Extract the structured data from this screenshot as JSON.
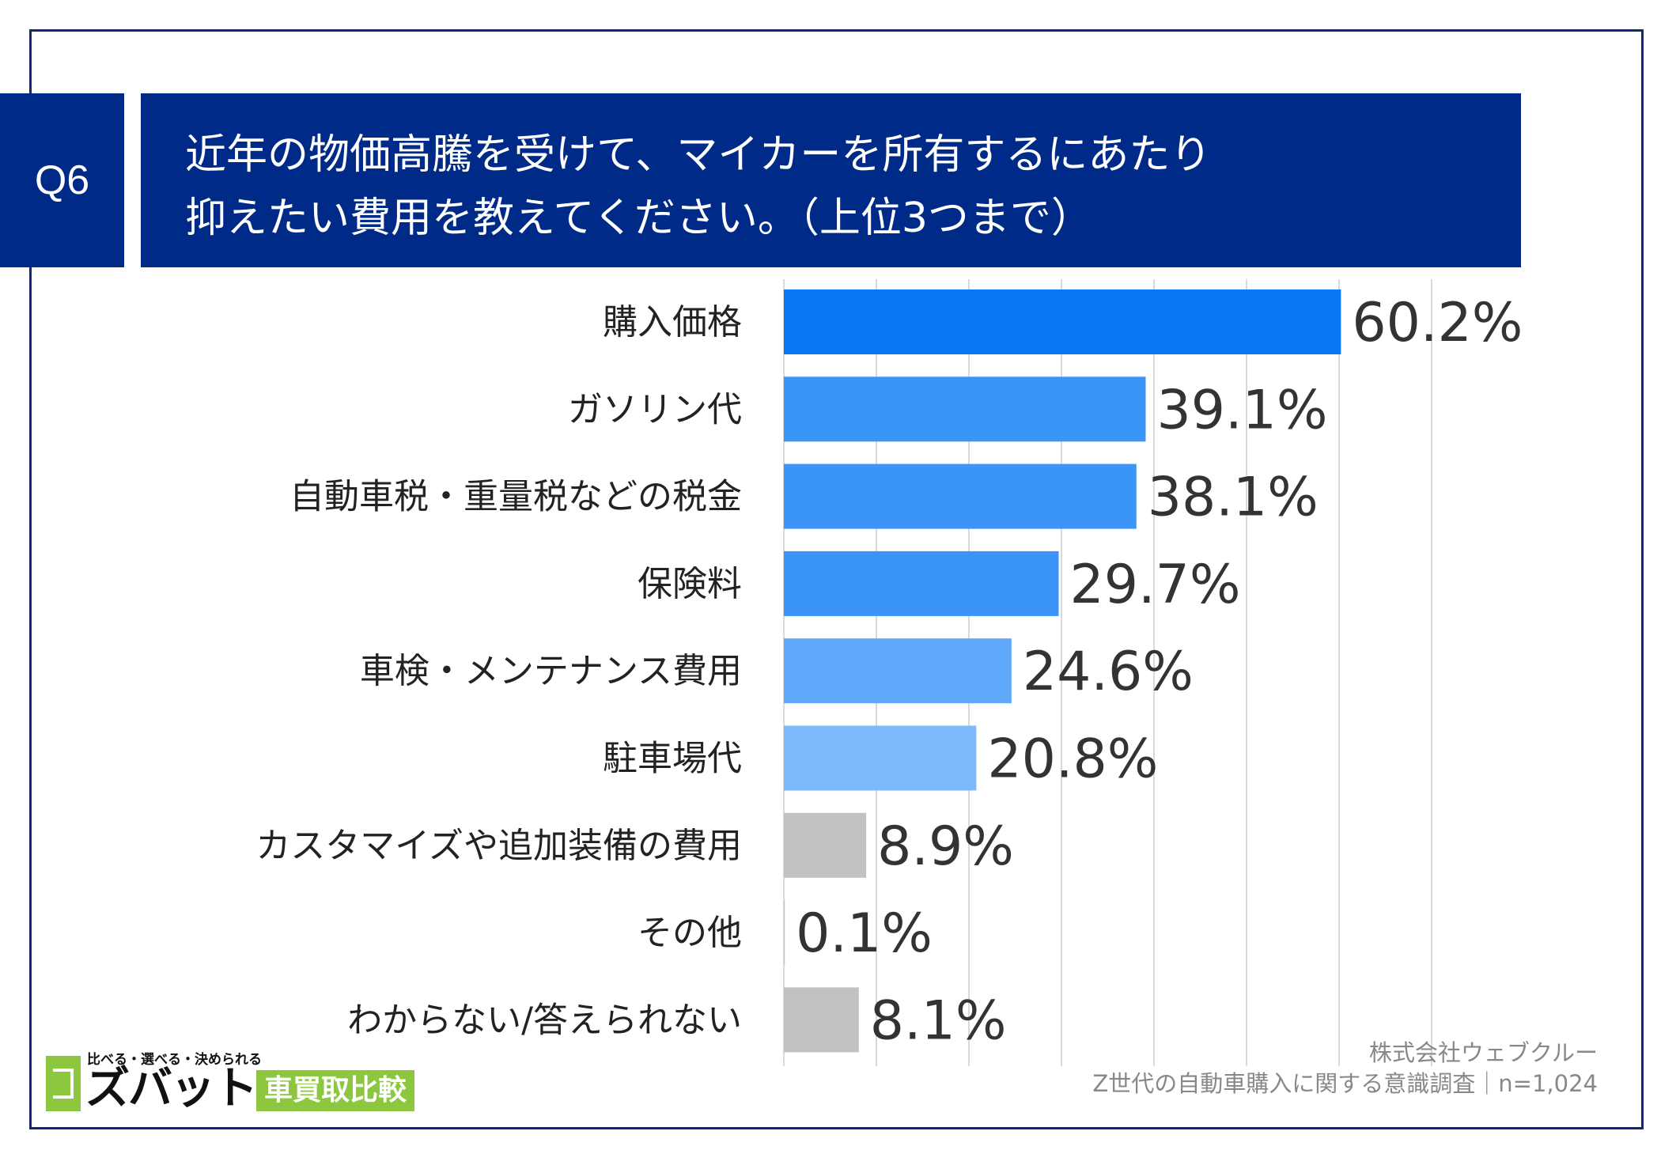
{
  "header": {
    "q_label": "Q6",
    "title_line1": "近年の物価高騰を受けて、マイカーを所有するにあたり",
    "title_line2": "抑えたい費用を教えてください。（上位3つまで）"
  },
  "chart_data": {
    "type": "bar",
    "orientation": "horizontal",
    "categories": [
      "購入価格",
      "ガソリン代",
      "自動車税・重量税などの税金",
      "保険料",
      "車検・メンテナンス費用",
      "駐車場代",
      "カスタマイズや追加装備の費用",
      "その他",
      "わからない/答えられない"
    ],
    "values": [
      60.2,
      39.1,
      38.1,
      29.7,
      24.6,
      20.8,
      8.9,
      0.1,
      8.1
    ],
    "value_labels": [
      "60.2%",
      "39.1%",
      "38.1%",
      "29.7%",
      "24.6%",
      "20.8%",
      "8.9%",
      "0.1%",
      "8.1%"
    ],
    "bar_colors": [
      "#0a78f5",
      "#3b94f8",
      "#3b94f8",
      "#3b94f8",
      "#5fa8fa",
      "#7db9fb",
      "#c2c2c2",
      "#c2c2c2",
      "#c2c2c2"
    ],
    "xlim": [
      0,
      70
    ],
    "grid": true,
    "gridline_step": 10
  },
  "footer": {
    "source_company": "株式会社ウェブクルー",
    "source_survey": "Z世代の自動車購入に関する意識調査｜n=1,024"
  },
  "logo": {
    "tagline": "比べる・選べる・決められる",
    "brand": "ズバット",
    "sub": "車買取比較"
  },
  "colors": {
    "frame": "#0b2a7a",
    "header_bg": "#002a88",
    "logo_green": "#8dc63f"
  }
}
